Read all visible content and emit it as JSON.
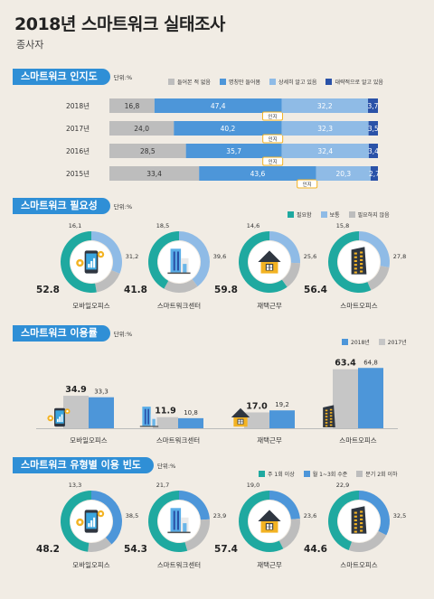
{
  "title": "2018년 스마트워크 실태조사",
  "subtitle": "종사자",
  "colors": {
    "accent": "#2f8fd6",
    "gray": "#bdbdbd",
    "mid_blue": "#4d96d9",
    "light_blue": "#8fbbe6",
    "dark_blue": "#2a52a8",
    "teal": "#1fa9a0",
    "badge": "#f3b323"
  },
  "sections": {
    "awareness": {
      "title": "스마트워크 인지도",
      "unit": "단위:%"
    },
    "necessity": {
      "title": "스마트워크 필요성",
      "unit": "단위:%"
    },
    "usage": {
      "title": "스마트워크 이용률",
      "unit": "단위:%"
    },
    "frequency": {
      "title": "스마트워크 유형별 이용 빈도",
      "unit": "단위:%"
    }
  },
  "chart_data": [
    {
      "type": "bar",
      "subtype": "stacked-horizontal",
      "categories": [
        "2018년",
        "2017년",
        "2016년",
        "2015년"
      ],
      "series": [
        {
          "name": "들어본 적 없음",
          "values": [
            16.8,
            24.0,
            28.5,
            33.4
          ]
        },
        {
          "name": "명칭만 들어봄",
          "values": [
            47.4,
            40.2,
            35.7,
            43.6
          ]
        },
        {
          "name": "상세히 알고 있음",
          "values": [
            32.2,
            32.3,
            32.4,
            20.3
          ]
        },
        {
          "name": "대략적으로 알고 있음",
          "values": [
            3.7,
            3.5,
            3.4,
            2.7
          ]
        }
      ],
      "value_labels": [
        [
          "16,8",
          "47,4",
          "32,2",
          "3,7"
        ],
        [
          "24,0",
          "40,2",
          "32,3",
          "3,5"
        ],
        [
          "28,5",
          "35,7",
          "32,4",
          "3,4"
        ],
        [
          "33,4",
          "43,6",
          "20,3",
          "2,7"
        ]
      ],
      "badge_label": "인지",
      "legend_position": "top-right"
    },
    {
      "type": "pie",
      "subtype": "donut",
      "legend": [
        "필요함",
        "보통",
        "필요하지 않음"
      ],
      "items": [
        {
          "name": "모바일오피스",
          "values": [
            52.8,
            31.2,
            16.1
          ],
          "labels": [
            "52.8",
            "31,2",
            "16,1"
          ],
          "icon": "smartphone-icon"
        },
        {
          "name": "스마트워크센터",
          "values": [
            41.8,
            39.6,
            18.5
          ],
          "labels": [
            "41.8",
            "39,6",
            "18,5"
          ],
          "icon": "office-building-icon"
        },
        {
          "name": "재택근무",
          "values": [
            59.8,
            25.6,
            14.6
          ],
          "labels": [
            "59.8",
            "25,6",
            "14,6"
          ],
          "icon": "house-icon"
        },
        {
          "name": "스마트오피스",
          "values": [
            56.4,
            27.8,
            15.8
          ],
          "labels": [
            "56.4",
            "27,8",
            "15,8"
          ],
          "icon": "tower-icon"
        }
      ],
      "legend_position": "top-right"
    },
    {
      "type": "bar",
      "subtype": "grouped-vertical",
      "categories": [
        "모바일오피스",
        "스마트워크센터",
        "재택근무",
        "스마트오피스"
      ],
      "series": [
        {
          "name": "2018년",
          "values": [
            33.3,
            10.8,
            19.2,
            64.8
          ],
          "labels": [
            "33,3",
            "10,8",
            "19,2",
            "64,8"
          ]
        },
        {
          "name": "2017년",
          "values": [
            34.9,
            11.9,
            17.0,
            63.4
          ],
          "labels": [
            "34.9",
            "11.9",
            "17.0",
            "63.4"
          ]
        }
      ],
      "legend_position": "top-right"
    },
    {
      "type": "pie",
      "subtype": "donut",
      "legend": [
        "주 1회 이상",
        "월 1~3회 수준",
        "분기 2회 이하"
      ],
      "items": [
        {
          "name": "모바일오피스",
          "values": [
            48.2,
            38.5,
            13.3
          ],
          "labels": [
            "48.2",
            "38,5",
            "13,3"
          ],
          "icon": "smartphone-icon"
        },
        {
          "name": "스마트워크센터",
          "values": [
            54.3,
            23.9,
            21.7
          ],
          "labels": [
            "54.3",
            "23,9",
            "21,7"
          ],
          "icon": "office-building-icon"
        },
        {
          "name": "재택근무",
          "values": [
            57.4,
            23.6,
            19.0
          ],
          "labels": [
            "57.4",
            "23,6",
            "19,0"
          ],
          "icon": "house-icon"
        },
        {
          "name": "스마트오피스",
          "values": [
            44.6,
            32.5,
            22.9
          ],
          "labels": [
            "44.6",
            "32,5",
            "22,9"
          ],
          "icon": "tower-icon"
        }
      ],
      "legend_position": "top-right"
    }
  ]
}
